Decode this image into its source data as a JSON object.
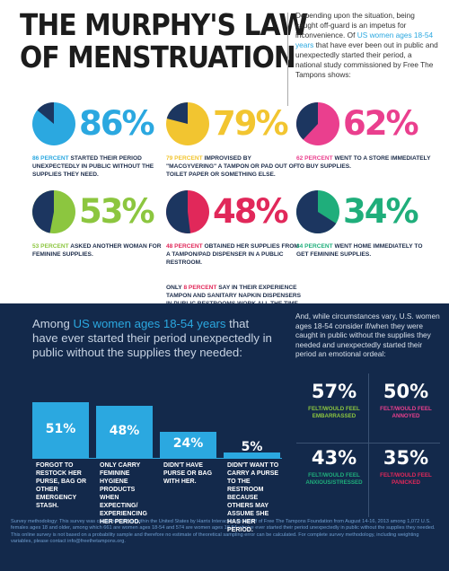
{
  "title": {
    "line1": "THE MURPHY'S LAW",
    "line2": "OF MENSTRUATION"
  },
  "intro": {
    "pre": "Depending upon the situation, being caught off-guard is an impetus for inconvenience. Of ",
    "highlight": "US women ages 18-54 years",
    "post": " that have ever been out in public and unexpectedly started their period, a national study commissioned by Free The Tampons shows:"
  },
  "stats": [
    {
      "pct": "86%",
      "value": 86,
      "color": "#2ba8e0",
      "lead": "86 PERCENT",
      "text": "STARTED THEIR PERIOD UNEXPECTEDLY IN PUBLIC WITHOUT THE SUPPLIES THEY NEED."
    },
    {
      "pct": "79%",
      "value": 79,
      "color": "#f2c530",
      "lead": "79 PERCENT",
      "text": "IMPROVISED BY \"MACGYVERING\" A TAMPON OR PAD OUT OF TOILET PAPER OR SOMETHING ELSE."
    },
    {
      "pct": "62%",
      "value": 62,
      "color": "#ea3f8e",
      "lead": "62 PERCENT",
      "text": "WENT TO A STORE IMMEDIATELY TO BUY SUPPLIES."
    },
    {
      "pct": "53%",
      "value": 53,
      "color": "#8cc63f",
      "lead": "53 PERCENT",
      "text": "ASKED ANOTHER WOMAN FOR FEMININE SUPPLIES."
    },
    {
      "pct": "48%",
      "value": 48,
      "color": "#e1285a",
      "lead": "48 PERCENT",
      "text": "OBTAINED HER SUPPLIES FROM A TAMPON/PAD DISPENSER IN A PUBLIC RESTROOM."
    },
    {
      "pct": "34%",
      "value": 34,
      "color": "#1fae7b",
      "lead": "34 PERCENT",
      "text": "WENT HOME IMMEDIATELY TO GET FEMININE SUPPLIES."
    }
  ],
  "note48": {
    "pre": "ONLY ",
    "lead": "8 PERCENT",
    "post": " SAY IN THEIR EXPERIENCE TAMPON AND SANITARY NAPKIN DISPENSERS IN PUBLIC RESTROOMS WORK ALL THE TIME."
  },
  "question": {
    "pre": "Among ",
    "highlight": "US women ages 18-54 years",
    "post": " that have ever started their period unexpectedly in public without the supplies they needed:"
  },
  "chart_data": {
    "type": "bar",
    "categories": [
      "FORGOT TO RESTOCK HER PURSE, BAG OR OTHER EMERGENCY STASH.",
      "ONLY CARRY FEMININE HYGIENE PRODUCTS WHEN EXPECTING/ EXPERIENCING HER PERIOD.",
      "DIDN'T HAVE PURSE OR BAG WITH HER.",
      "DIDN'T WANT TO CARRY A PURSE TO THE RESTROOM BECAUSE OTHERS MAY ASSUME SHE HAS HER PERIOD."
    ],
    "values": [
      51,
      48,
      24,
      5
    ],
    "labels": [
      "51%",
      "48%",
      "24%",
      "5%"
    ],
    "title": "",
    "xlabel": "",
    "ylabel": "",
    "ylim": [
      0,
      55
    ]
  },
  "emotional": {
    "intro": "And, while circumstances vary, U.S. women ages 18-54 consider if/when they were caught in public without the supplies they needed and unexpectedly started their period an emotional ordeal:",
    "cells": [
      {
        "value": "57%",
        "label": "FELT/WOULD FEEL EMBARRASSED",
        "color": "#8cc63f"
      },
      {
        "value": "50%",
        "label": "FELT/WOULD FEEL ANNOYED",
        "color": "#ea3f8e"
      },
      {
        "value": "43%",
        "label": "FELT/WOULD FEEL ANXIOUS/STRESSED",
        "color": "#1fae7b"
      },
      {
        "value": "35%",
        "label": "FELT/WOULD FEEL PANICKED",
        "color": "#e1285a"
      }
    ]
  },
  "methodology": "Survey methodology: This survey was conducted online within the United States by Harris Interactive on behalf of Free The Tampons Foundation from August 14-16, 2013 among 1,072 U.S. females ages 18 and older, among which 661 are women ages 18-54 and 574 are women ages 18-54 who've ever started their period unexpectedly in public without the supplies they needed. This online survey is not based on a probability sample and therefore no estimate of theoretical sampling error can be calculated. For complete survey methodology, including weighting variables, please contact info@freethetampons.org.",
  "colors": {
    "navy": "#13294b",
    "pie_dark": "#1c3660",
    "accent": "#2ba8e0"
  }
}
